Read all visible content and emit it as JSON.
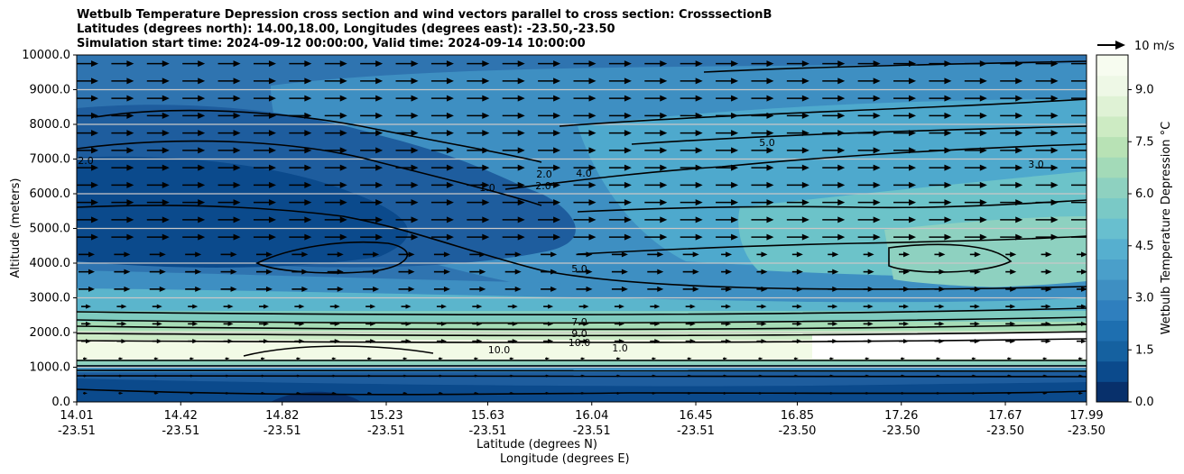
{
  "chart_data": {
    "type": "contour",
    "title_lines": [
      "Wetbulb Temperature Depression cross section and wind vectors parallel to cross section: CrosssectionB",
      "Latitudes (degrees north): 14.00,18.00, Longitudes (degrees east): -23.50,-23.50",
      "Simulation start time: 2024-09-12 00:00:00, Valid time: 2024-09-14 10:00:00"
    ],
    "ylabel": "Altitude (meters)",
    "xlabel_lat": "Latitude (degrees N)",
    "xlabel_lon": "Longitude (degrees E)",
    "ylim": [
      0,
      10000
    ],
    "yticks": [
      "0.0",
      "1000.0",
      "2000.0",
      "3000.0",
      "4000.0",
      "5000.0",
      "6000.0",
      "7000.0",
      "8000.0",
      "9000.0",
      "10000.0"
    ],
    "xticks_lat": [
      "14.01",
      "14.42",
      "14.82",
      "15.23",
      "15.63",
      "16.04",
      "16.45",
      "16.85",
      "17.26",
      "17.67",
      "17.99"
    ],
    "xticks_lon": [
      "-23.51",
      "-23.51",
      "-23.51",
      "-23.51",
      "-23.51",
      "-23.51",
      "-23.51",
      "-23.50",
      "-23.50",
      "-23.50",
      "-23.50"
    ],
    "colorbar": {
      "label": "Wetbulb Temperature Depression °C",
      "range": [
        0,
        10
      ],
      "ticks": [
        "0.0",
        "1.5",
        "3.0",
        "4.5",
        "6.0",
        "7.5",
        "9.0"
      ]
    },
    "wind_key": {
      "label": "10 m/s",
      "value": 10
    },
    "contour_labels": [
      "2.0",
      "1.0",
      "2.0",
      "4.0",
      "5.0",
      "3.0",
      "5.0",
      "7.0",
      "9.0",
      "10.0",
      "10.0",
      "1.0",
      "2.0"
    ],
    "grid": "horizontal"
  }
}
